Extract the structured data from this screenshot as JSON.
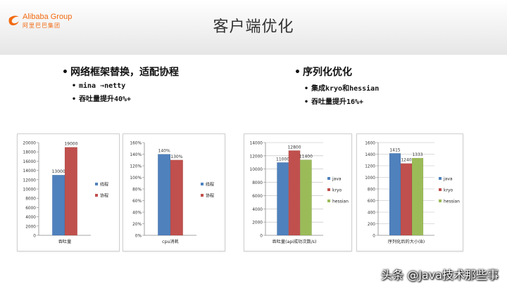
{
  "header": {
    "logo": {
      "name": "Alibaba Group",
      "sub": "阿里巴巴集团"
    },
    "title": "客户端优化"
  },
  "left_bullets": {
    "main": "网络框架替换，适配协程",
    "subs": [
      "mina ⇒netty",
      "吞吐量提升40%+"
    ]
  },
  "right_bullets": {
    "main": "序列化优化",
    "subs": [
      "集成kryo和hessian",
      "吞吐量提升16%+"
    ]
  },
  "chart_data": [
    {
      "type": "bar",
      "title": "",
      "categories": [
        "吞吐量"
      ],
      "xlabel": "",
      "ylabel": "",
      "ylim": [
        0,
        20000
      ],
      "yticks": [
        "0",
        "2000",
        "4000",
        "6000",
        "8000",
        "10000",
        "12000",
        "14000",
        "16000",
        "18000",
        "20000"
      ],
      "series": [
        {
          "name": "线程",
          "values": [
            13000
          ],
          "labels": [
            "13000"
          ],
          "color": "#4f81bd"
        },
        {
          "name": "协程",
          "values": [
            19000
          ],
          "labels": [
            "19000"
          ],
          "color": "#c0504d"
        }
      ],
      "legend": "right",
      "grid": false
    },
    {
      "type": "bar",
      "title": "",
      "categories": [
        "cpu消耗"
      ],
      "xlabel": "",
      "ylabel": "",
      "ylim": [
        0,
        160
      ],
      "yticks": [
        "0%",
        "20%",
        "40%",
        "60%",
        "80%",
        "100%",
        "120%",
        "140%",
        "160%"
      ],
      "series": [
        {
          "name": "线程",
          "values": [
            140
          ],
          "labels": [
            "140%"
          ],
          "color": "#4f81bd"
        },
        {
          "name": "协程",
          "values": [
            130
          ],
          "labels": [
            "130%"
          ],
          "color": "#c0504d"
        }
      ],
      "legend": "right",
      "grid": false
    },
    {
      "type": "bar",
      "title": "",
      "categories": [
        "吞吐量(api成功次数/s)"
      ],
      "xlabel": "",
      "ylabel": "",
      "ylim": [
        0,
        14000
      ],
      "yticks": [
        "0",
        "2000",
        "4000",
        "6000",
        "8000",
        "10000",
        "12000",
        "14000"
      ],
      "series": [
        {
          "name": "java",
          "values": [
            11000
          ],
          "labels": [
            "11000"
          ],
          "color": "#4f81bd"
        },
        {
          "name": "kryo",
          "values": [
            12800
          ],
          "labels": [
            "12800"
          ],
          "color": "#c0504d"
        },
        {
          "name": "hessian",
          "values": [
            11400
          ],
          "labels": [
            "11400"
          ],
          "color": "#9bbb59"
        }
      ],
      "legend": "right",
      "grid": true
    },
    {
      "type": "bar",
      "title": "",
      "categories": [
        "序列化后的大小(B)"
      ],
      "xlabel": "",
      "ylabel": "",
      "ylim": [
        0,
        1600
      ],
      "yticks": [
        "0",
        "200",
        "400",
        "600",
        "800",
        "1000",
        "1200",
        "1400",
        "1600"
      ],
      "series": [
        {
          "name": "java",
          "values": [
            1415
          ],
          "labels": [
            "1415"
          ],
          "color": "#4f81bd"
        },
        {
          "name": "kryo",
          "values": [
            1240
          ],
          "labels": [
            "1240"
          ],
          "color": "#c0504d"
        },
        {
          "name": "hessian",
          "values": [
            1333
          ],
          "labels": [
            "1333"
          ],
          "color": "#9bbb59"
        }
      ],
      "legend": "right",
      "grid": true
    }
  ],
  "watermark": "头条 @Java技术那些事"
}
